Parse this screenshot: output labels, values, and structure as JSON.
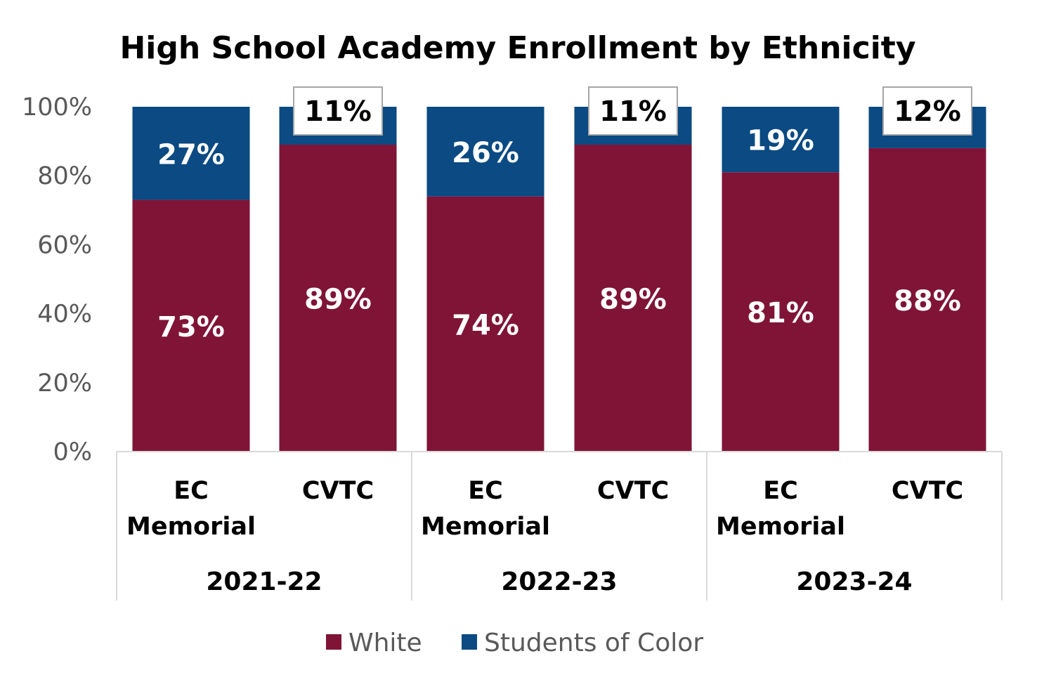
{
  "chart_data": {
    "type": "bar",
    "stacked": true,
    "percent_stacked": true,
    "title": "High School Academy Enrollment by Ethnicity",
    "xlabel": "",
    "ylabel": "",
    "ylim": [
      0,
      100
    ],
    "yticks": [
      "0%",
      "20%",
      "40%",
      "60%",
      "80%",
      "100%"
    ],
    "grid": false,
    "legend_position": "bottom",
    "groups": [
      {
        "label": "2021-22",
        "categories": [
          [
            "EC",
            "Memorial"
          ],
          [
            "CVTC"
          ]
        ]
      },
      {
        "label": "2022-23",
        "categories": [
          [
            "EC",
            "Memorial"
          ],
          [
            "CVTC"
          ]
        ]
      },
      {
        "label": "2023-24",
        "categories": [
          [
            "EC",
            "Memorial"
          ],
          [
            "CVTC"
          ]
        ]
      }
    ],
    "series": [
      {
        "name": "White",
        "color": "#7f1437",
        "values": [
          73,
          89,
          74,
          89,
          81,
          88
        ],
        "labels": [
          "73%",
          "89%",
          "74%",
          "89%",
          "81%",
          "88%"
        ]
      },
      {
        "name": "Students of Color",
        "color": "#0b4a82",
        "values": [
          27,
          11,
          26,
          11,
          19,
          12
        ],
        "labels": [
          "27%",
          "11%",
          "26%",
          "11%",
          "19%",
          "12%"
        ],
        "boxed": [
          false,
          true,
          false,
          true,
          false,
          true
        ]
      }
    ]
  }
}
